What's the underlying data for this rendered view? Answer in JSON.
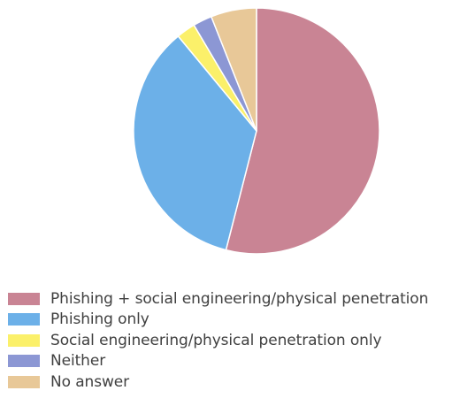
{
  "chart_data": {
    "type": "pie",
    "title": "",
    "legend_position": "bottom",
    "start_angle_deg": 0,
    "direction": "clockwise",
    "slices": [
      {
        "label": "Phishing + social engineering/physical penetration",
        "value": 54,
        "color": "#c98494"
      },
      {
        "label": "Phishing only",
        "value": 35,
        "color": "#6cb0e8"
      },
      {
        "label": "Social engineering/physical penetration only",
        "value": 2.5,
        "color": "#fbf06a"
      },
      {
        "label": "Neither",
        "value": 2.5,
        "color": "#8c97d4"
      },
      {
        "label": "No answer",
        "value": 6,
        "color": "#e8c898"
      }
    ]
  }
}
